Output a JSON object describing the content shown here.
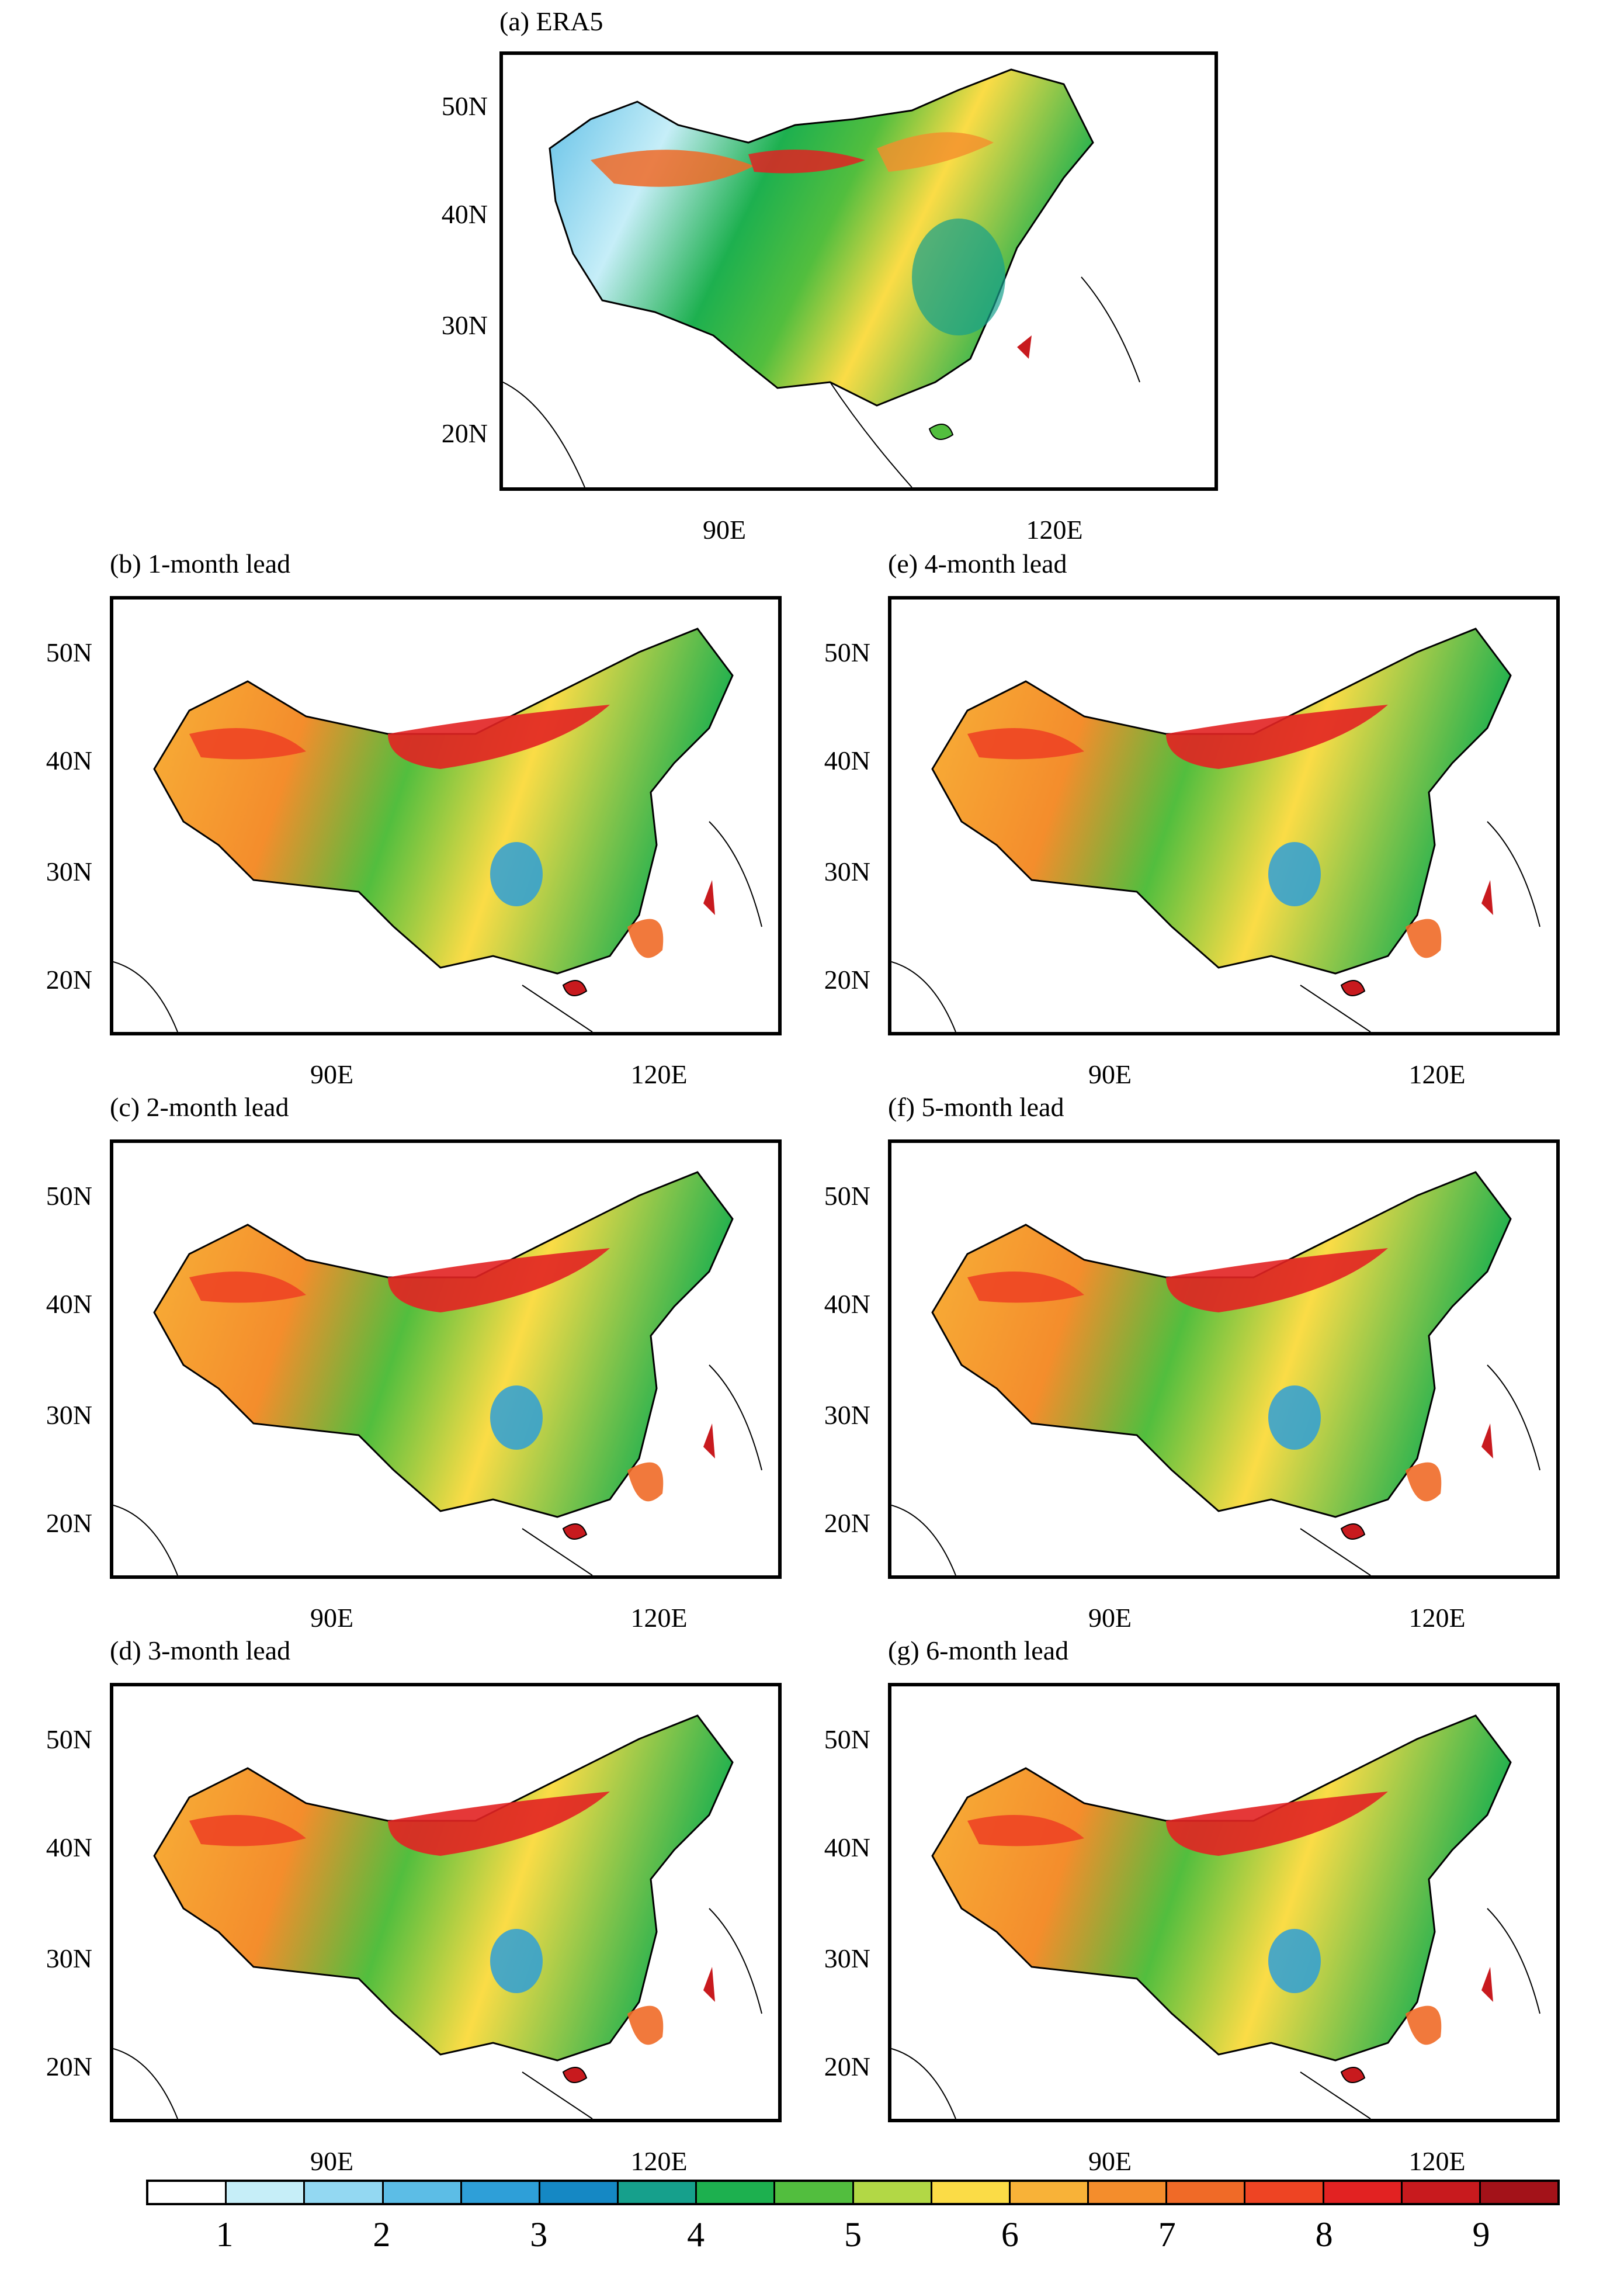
{
  "figure": {
    "panels": [
      {
        "id": "a",
        "title": "(a) ERA5"
      },
      {
        "id": "b",
        "title": "(b) 1-month lead"
      },
      {
        "id": "c",
        "title": "(c) 2-month lead"
      },
      {
        "id": "d",
        "title": "(d) 3-month lead"
      },
      {
        "id": "e",
        "title": "(e) 4-month lead"
      },
      {
        "id": "f",
        "title": "(f) 5-month lead"
      },
      {
        "id": "g",
        "title": "(g) 6-month lead"
      }
    ],
    "lat_labels": [
      "50N",
      "40N",
      "30N",
      "20N"
    ],
    "lon_labels": [
      "90E",
      "120E"
    ]
  },
  "colorbar": {
    "colors": [
      "#ffffff",
      "#c6eef8",
      "#93d8f2",
      "#5cbde6",
      "#2e9fd8",
      "#1588c4",
      "#16a08c",
      "#1db04f",
      "#52be3e",
      "#b2d845",
      "#fbdc46",
      "#f8b238",
      "#f48d2c",
      "#f06a27",
      "#ee4423",
      "#e22222",
      "#c81a1e",
      "#a31219"
    ],
    "labels": [
      "1",
      "2",
      "3",
      "4",
      "5",
      "6",
      "7",
      "8",
      "9"
    ]
  }
}
